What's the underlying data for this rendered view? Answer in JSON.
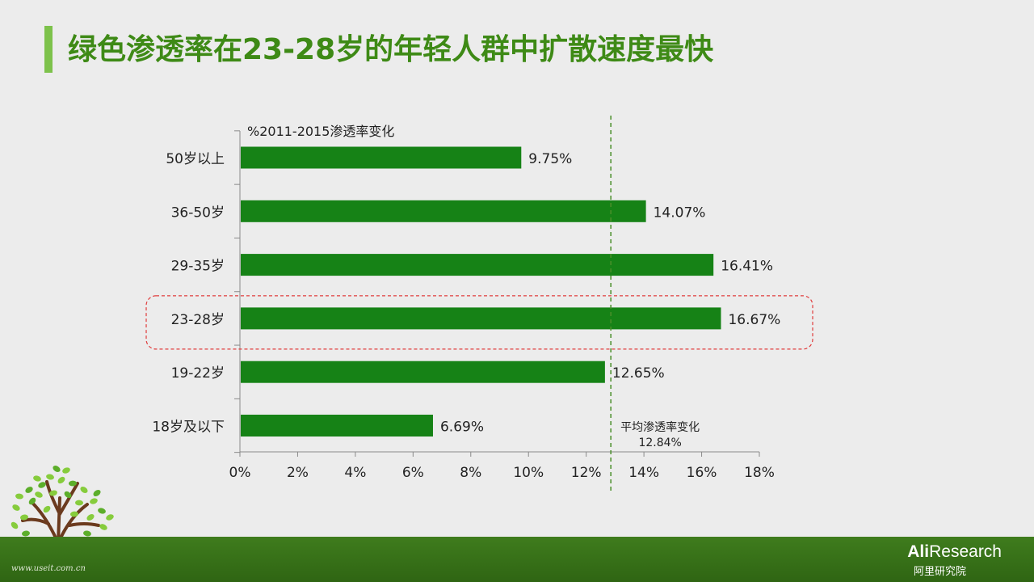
{
  "slide": {
    "title": "绿色渗透率在23-28岁的年轻人群中扩散速度最快",
    "watermark": "www.useit.com.cn",
    "logo_en_bold": "Ali",
    "logo_en_rest": "Research",
    "logo_cn": "阿里研究院"
  },
  "colors": {
    "title": "#3e8a16",
    "accent_bar": "#7dc24b",
    "bar": "#168216",
    "highlight_box": "#e03c3c",
    "average_line": "#4a8f2a",
    "footer": "#3a7418"
  },
  "chart_data": {
    "type": "bar",
    "orientation": "horizontal",
    "title": "%2011-2015渗透率变化",
    "categories": [
      "50岁以上",
      "36-50岁",
      "29-35岁",
      "23-28岁",
      "19-22岁",
      "18岁及以下"
    ],
    "values": [
      9.75,
      14.07,
      16.41,
      16.67,
      12.65,
      6.69
    ],
    "value_labels": [
      "9.75%",
      "14.07%",
      "16.41%",
      "16.67%",
      "12.65%",
      "6.69%"
    ],
    "xlim": [
      0,
      18
    ],
    "xticks": [
      0,
      2,
      4,
      6,
      8,
      10,
      12,
      14,
      16,
      18
    ],
    "xtick_labels": [
      "0%",
      "2%",
      "4%",
      "6%",
      "8%",
      "10%",
      "12%",
      "14%",
      "16%",
      "18%"
    ],
    "grid": false,
    "average": {
      "label": "平均渗透率变化",
      "value": 12.84,
      "value_label": "12.84%"
    },
    "highlight_category": "23-28岁"
  }
}
